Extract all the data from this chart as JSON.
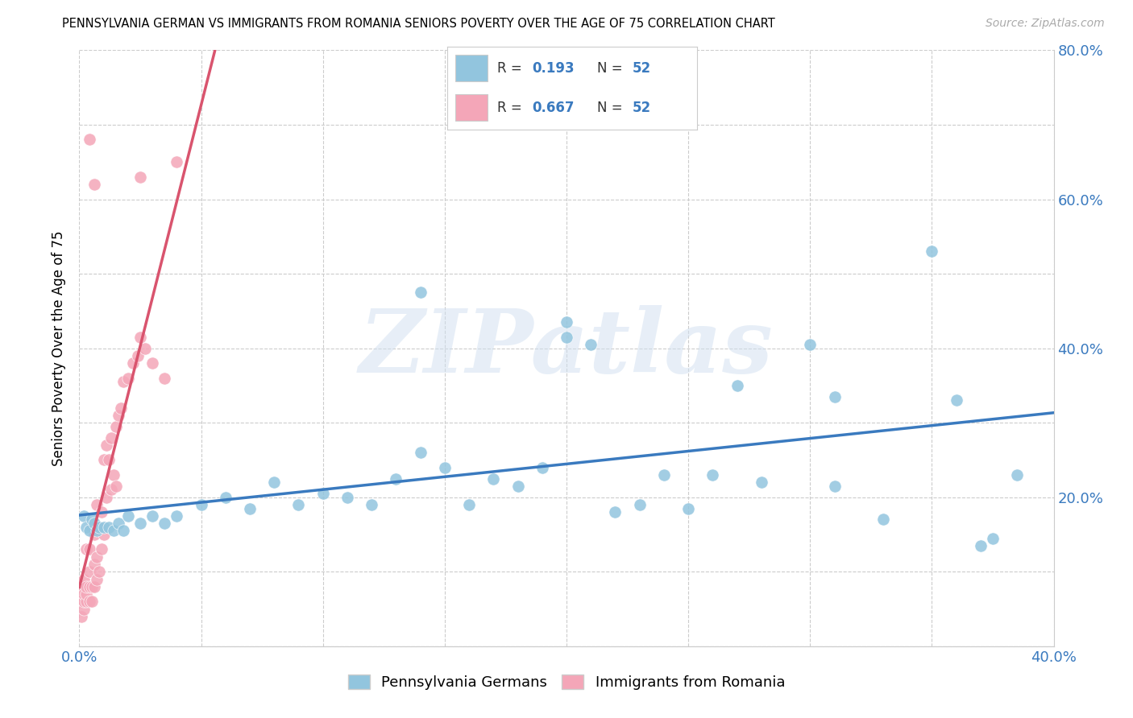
{
  "title": "PENNSYLVANIA GERMAN VS IMMIGRANTS FROM ROMANIA SENIORS POVERTY OVER THE AGE OF 75 CORRELATION CHART",
  "source": "Source: ZipAtlas.com",
  "ylabel": "Seniors Poverty Over the Age of 75",
  "watermark": "ZIPatlas",
  "blue_R": 0.193,
  "blue_N": 52,
  "pink_R": 0.667,
  "pink_N": 52,
  "xlim": [
    0.0,
    0.4
  ],
  "ylim": [
    0.0,
    0.8
  ],
  "blue_color": "#92c5de",
  "pink_color": "#f4a6b8",
  "blue_line_color": "#3a7abf",
  "pink_line_color": "#d9546e",
  "grid_color": "#cccccc",
  "legend_label_blue": "Pennsylvania Germans",
  "legend_label_pink": "Immigrants from Romania",
  "blue_scatter_x": [
    0.002,
    0.003,
    0.004,
    0.005,
    0.006,
    0.007,
    0.008,
    0.01,
    0.012,
    0.014,
    0.016,
    0.018,
    0.02,
    0.025,
    0.03,
    0.035,
    0.04,
    0.05,
    0.06,
    0.07,
    0.08,
    0.09,
    0.1,
    0.11,
    0.12,
    0.13,
    0.14,
    0.15,
    0.16,
    0.17,
    0.18,
    0.19,
    0.2,
    0.21,
    0.22,
    0.23,
    0.24,
    0.25,
    0.26,
    0.27,
    0.28,
    0.3,
    0.31,
    0.33,
    0.35,
    0.36,
    0.375,
    0.385,
    0.14,
    0.2,
    0.31,
    0.37
  ],
  "blue_scatter_y": [
    0.175,
    0.16,
    0.155,
    0.17,
    0.165,
    0.155,
    0.16,
    0.16,
    0.16,
    0.155,
    0.165,
    0.155,
    0.175,
    0.165,
    0.175,
    0.165,
    0.175,
    0.19,
    0.2,
    0.185,
    0.22,
    0.19,
    0.205,
    0.2,
    0.19,
    0.225,
    0.26,
    0.24,
    0.19,
    0.225,
    0.215,
    0.24,
    0.415,
    0.405,
    0.18,
    0.19,
    0.23,
    0.185,
    0.23,
    0.35,
    0.22,
    0.405,
    0.215,
    0.17,
    0.53,
    0.33,
    0.145,
    0.23,
    0.475,
    0.435,
    0.335,
    0.135
  ],
  "pink_scatter_x": [
    0.001,
    0.001,
    0.001,
    0.002,
    0.002,
    0.002,
    0.002,
    0.003,
    0.003,
    0.003,
    0.003,
    0.004,
    0.004,
    0.004,
    0.004,
    0.005,
    0.005,
    0.005,
    0.006,
    0.006,
    0.006,
    0.007,
    0.007,
    0.007,
    0.008,
    0.008,
    0.009,
    0.009,
    0.01,
    0.01,
    0.011,
    0.011,
    0.012,
    0.013,
    0.013,
    0.014,
    0.015,
    0.015,
    0.016,
    0.017,
    0.018,
    0.02,
    0.022,
    0.024,
    0.025,
    0.027,
    0.03,
    0.035,
    0.04,
    0.004,
    0.006,
    0.025
  ],
  "pink_scatter_y": [
    0.04,
    0.06,
    0.08,
    0.05,
    0.06,
    0.07,
    0.09,
    0.06,
    0.07,
    0.08,
    0.13,
    0.06,
    0.08,
    0.1,
    0.13,
    0.06,
    0.08,
    0.16,
    0.08,
    0.11,
    0.15,
    0.09,
    0.12,
    0.19,
    0.1,
    0.16,
    0.13,
    0.18,
    0.15,
    0.25,
    0.2,
    0.27,
    0.25,
    0.21,
    0.28,
    0.23,
    0.215,
    0.295,
    0.31,
    0.32,
    0.355,
    0.36,
    0.38,
    0.39,
    0.415,
    0.4,
    0.38,
    0.36,
    0.65,
    0.68,
    0.62,
    0.63
  ]
}
